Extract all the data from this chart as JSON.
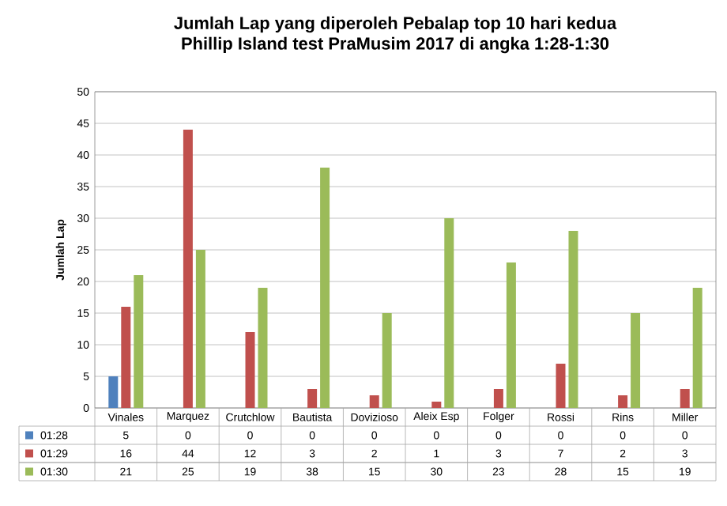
{
  "chart_data": {
    "type": "bar",
    "title": "Jumlah Lap yang diperoleh Pebalap top 10 hari kedua\nPhillip Island test PraMusim 2017 di angka 1:28-1:30",
    "ylabel": "Jumlah Lap",
    "categories": [
      "Vinales",
      "Marquez",
      "Crutchlow",
      "Bautista",
      "Dovizioso",
      "Aleix Esp",
      "Folger",
      "Rossi",
      "Rins",
      "Miller"
    ],
    "series": [
      {
        "name": "01:28",
        "color": "#4f81bd",
        "values": [
          5,
          0,
          0,
          0,
          0,
          0,
          0,
          0,
          0,
          0
        ]
      },
      {
        "name": "01:29",
        "color": "#c0504d",
        "values": [
          16,
          44,
          12,
          3,
          2,
          1,
          3,
          7,
          2,
          3
        ]
      },
      {
        "name": "01:30",
        "color": "#9bbb59",
        "values": [
          21,
          25,
          19,
          38,
          15,
          30,
          23,
          28,
          15,
          19
        ]
      }
    ],
    "ylim": [
      0,
      50
    ],
    "yticks": [
      0,
      5,
      10,
      15,
      20,
      25,
      30,
      35,
      40,
      45,
      50
    ],
    "grid": "y",
    "legend": "bottom left",
    "data_labels": true
  }
}
